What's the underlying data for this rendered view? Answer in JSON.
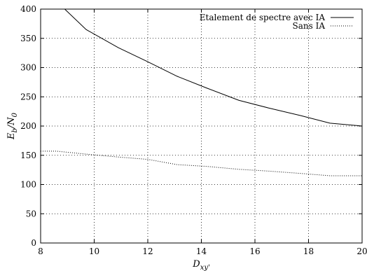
{
  "chart_data": {
    "type": "line",
    "title": "",
    "xlabel": "D_{xy'}",
    "ylabel": "E_b/N_0",
    "xlim": [
      8,
      20
    ],
    "ylim": [
      0,
      400
    ],
    "x_ticks": [
      8,
      10,
      12,
      14,
      16,
      18,
      20
    ],
    "y_ticks": [
      0,
      50,
      100,
      150,
      200,
      250,
      300,
      350,
      400
    ],
    "grid": true,
    "legend_position": "top-right",
    "series": [
      {
        "name": "Etalement de spectre avec IA",
        "style": "solid",
        "color": "#000000",
        "x": [
          8.9,
          9.7,
          10.9,
          12.0,
          13.1,
          14.2,
          15.4,
          16.5,
          17.7,
          18.8,
          20.0
        ],
        "y": [
          400,
          365,
          334,
          310,
          285,
          265,
          244,
          231,
          218,
          205,
          200
        ]
      },
      {
        "name": "Sans IA",
        "style": "dotted",
        "color": "#000000",
        "x": [
          8.0,
          8.6,
          9.7,
          10.9,
          12.0,
          13.1,
          14.2,
          15.4,
          16.5,
          17.7,
          18.8,
          20.0
        ],
        "y": [
          157,
          157,
          152,
          147,
          143,
          134,
          131,
          126,
          123,
          119,
          115,
          115
        ]
      }
    ]
  }
}
